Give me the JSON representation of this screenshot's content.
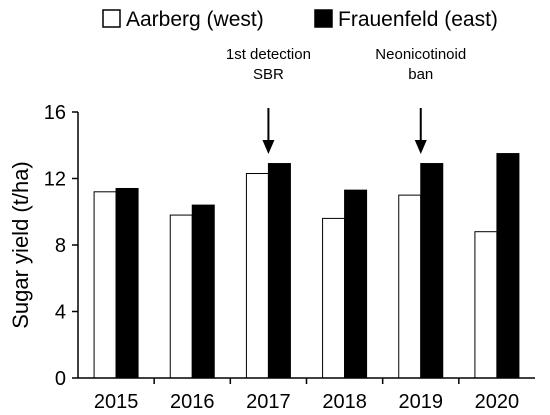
{
  "chart_data": {
    "type": "bar",
    "categories": [
      "2015",
      "2016",
      "2017",
      "2018",
      "2019",
      "2020"
    ],
    "series": [
      {
        "name": "Aarberg (west)",
        "values": [
          11.2,
          9.8,
          12.3,
          9.6,
          11.0,
          8.8
        ],
        "fill": "#ffffff",
        "stroke": "#000000"
      },
      {
        "name": "Frauenfeld (east)",
        "values": [
          11.4,
          10.4,
          12.9,
          11.3,
          12.9,
          13.5
        ],
        "fill": "#000000",
        "stroke": "#000000"
      }
    ],
    "ylabel": "Sugar yield (t/ha)",
    "xlabel": "",
    "ylim": [
      0,
      16
    ],
    "yticks": [
      "0",
      "4",
      "8",
      "12",
      "16"
    ],
    "grid": false,
    "legend_position": "top",
    "annotations": [
      {
        "category": "2017",
        "lines": [
          "1st detection",
          "SBR"
        ]
      },
      {
        "category": "2019",
        "lines": [
          "Neonicotinoid",
          "ban"
        ]
      }
    ]
  }
}
